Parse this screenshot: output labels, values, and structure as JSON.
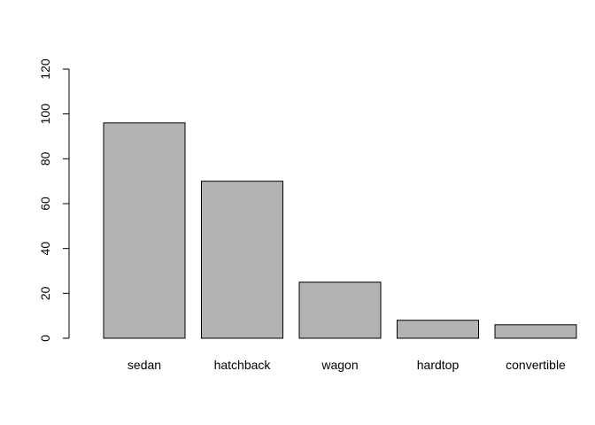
{
  "chart_data": {
    "type": "bar",
    "title": "",
    "xlabel": "",
    "ylabel": "",
    "categories": [
      "sedan",
      "hatchback",
      "wagon",
      "hardtop",
      "convertible"
    ],
    "values": [
      96,
      70,
      25,
      8,
      6
    ],
    "ylim": [
      0,
      120
    ],
    "yticks": [
      0,
      20,
      40,
      60,
      80,
      100,
      120
    ],
    "ytick_labels": [
      "0",
      "20",
      "40",
      "60",
      "80",
      "100",
      "120"
    ],
    "grid": false,
    "legend": "none",
    "bar_fill": "#b3b3b3",
    "bar_stroke": "#000000"
  }
}
